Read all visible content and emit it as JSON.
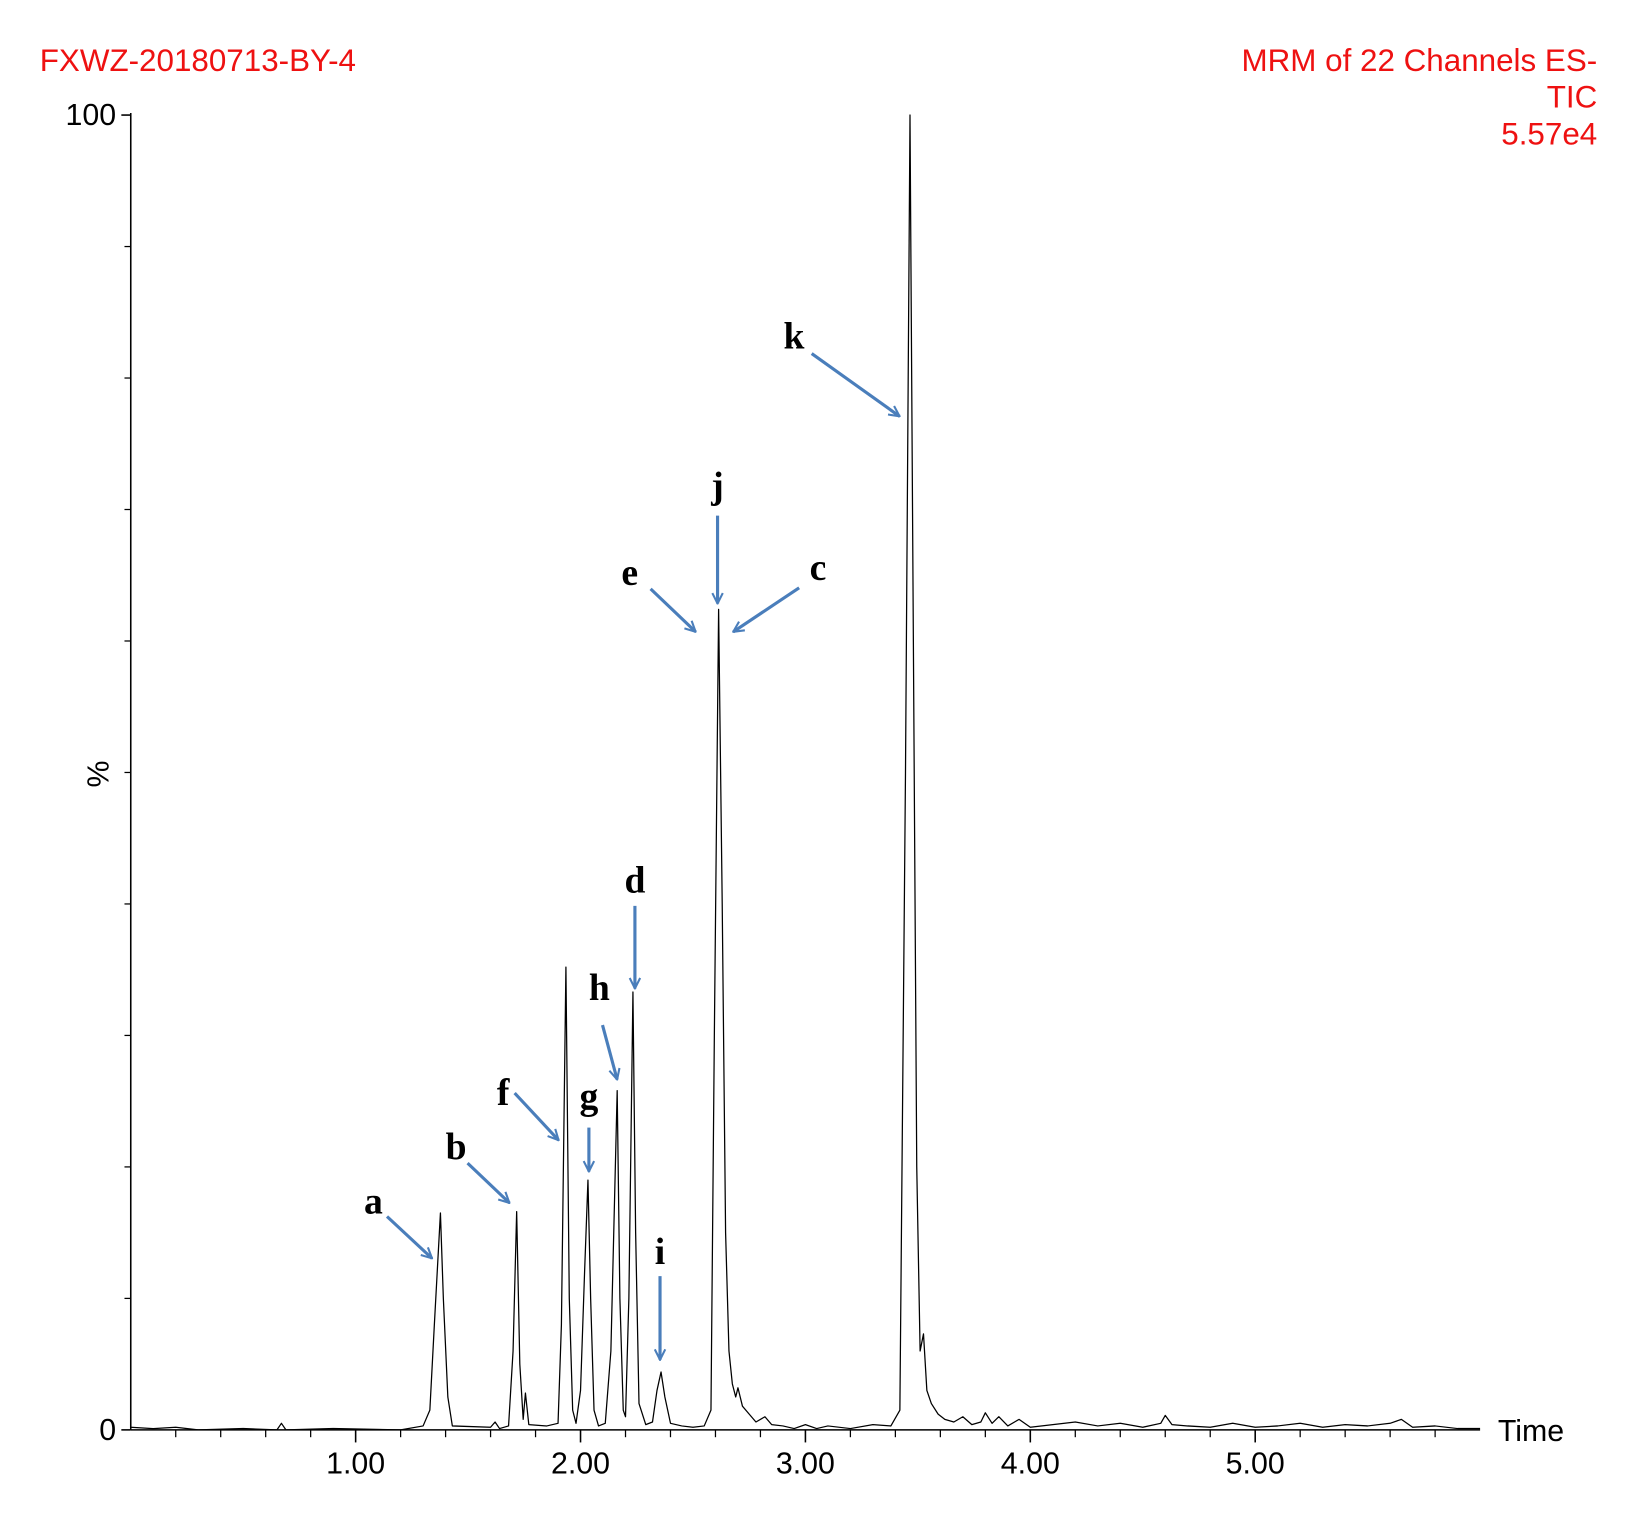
{
  "chart_data": {
    "type": "line",
    "title": "FXWZ-20180713-BY-4",
    "subtitle": [
      "MRM of 22 Channels ES-",
      "TIC",
      "5.57e4"
    ],
    "x_label": "Time",
    "y_label": "%",
    "color": "#000000",
    "xlim": [
      0,
      6.0
    ],
    "ylim": [
      0,
      100
    ],
    "xticks": [
      {
        "value": 1,
        "label": "1.00"
      },
      {
        "value": 2,
        "label": "2.00"
      },
      {
        "value": 3,
        "label": "3.00"
      },
      {
        "value": 4,
        "label": "4.00"
      },
      {
        "value": 5,
        "label": "5.00"
      }
    ],
    "xminorticks": [
      0.2,
      0.4,
      0.6,
      0.8,
      1.2,
      1.4,
      1.6,
      1.8,
      2.2,
      2.4,
      2.6,
      2.8,
      3.2,
      3.4,
      3.6,
      3.8,
      4.2,
      4.4,
      4.6,
      4.8,
      5.2,
      5.4,
      5.6,
      5.8
    ],
    "yticks": [
      0,
      100
    ],
    "yminorticks": [
      10,
      20,
      30,
      40,
      50,
      60,
      70,
      80,
      90
    ],
    "annotations": [
      "a",
      "b",
      "f",
      "g",
      "h",
      "d",
      "i",
      "j",
      "e",
      "c",
      "k"
    ],
    "x": [
      0,
      0.1,
      0.2,
      0.3,
      0.5,
      0.65,
      0.67,
      0.69,
      0.9,
      1.2,
      1.3,
      1.33,
      1.35,
      1.377,
      1.39,
      1.41,
      1.43,
      1.6,
      1.62,
      1.64,
      1.68,
      1.7,
      1.716,
      1.73,
      1.745,
      1.755,
      1.77,
      1.85,
      1.9,
      1.915,
      1.935,
      1.95,
      1.965,
      1.98,
      2.0,
      2.018,
      2.033,
      2.045,
      2.06,
      2.08,
      2.11,
      2.135,
      2.163,
      2.175,
      2.19,
      2.2,
      2.215,
      2.233,
      2.245,
      2.26,
      2.29,
      2.32,
      2.34,
      2.358,
      2.375,
      2.4,
      2.45,
      2.5,
      2.55,
      2.58,
      2.595,
      2.614,
      2.63,
      2.645,
      2.66,
      2.675,
      2.69,
      2.7,
      2.72,
      2.75,
      2.78,
      2.82,
      2.85,
      2.9,
      2.95,
      3.0,
      3.05,
      3.1,
      3.2,
      3.3,
      3.38,
      3.42,
      3.445,
      3.465,
      3.48,
      3.495,
      3.51,
      3.525,
      3.54,
      3.56,
      3.59,
      3.62,
      3.66,
      3.7,
      3.74,
      3.78,
      3.8,
      3.83,
      3.86,
      3.9,
      3.95,
      4.0,
      4.1,
      4.2,
      4.3,
      4.4,
      4.5,
      4.58,
      4.6,
      4.63,
      4.7,
      4.8,
      4.9,
      5.0,
      5.1,
      5.2,
      5.3,
      5.4,
      5.5,
      5.6,
      5.65,
      5.7,
      5.8,
      5.9,
      6.0
    ],
    "values": [
      0.2,
      0.1,
      0.2,
      0.0,
      0.1,
      0.0,
      0.5,
      0.0,
      0.1,
      0.0,
      0.3,
      1.5,
      8.0,
      16.5,
      10.0,
      2.5,
      0.3,
      0.2,
      0.6,
      0.1,
      0.3,
      6.0,
      16.6,
      5.0,
      0.8,
      2.8,
      0.4,
      0.3,
      0.5,
      8.0,
      35.2,
      10.0,
      1.5,
      0.5,
      3.0,
      12.0,
      19.0,
      10.0,
      1.5,
      0.3,
      0.5,
      6.0,
      25.8,
      10.0,
      1.5,
      1.0,
      10.0,
      33.3,
      15.0,
      2.0,
      0.4,
      0.6,
      3.0,
      4.4,
      2.5,
      0.5,
      0.3,
      0.2,
      0.3,
      1.5,
      30.0,
      62.4,
      40.0,
      15.0,
      6.0,
      3.5,
      2.5,
      3.2,
      1.8,
      1.2,
      0.6,
      1.0,
      0.4,
      0.3,
      0.1,
      0.4,
      0.1,
      0.3,
      0.1,
      0.4,
      0.3,
      1.5,
      50.0,
      100,
      60.0,
      20.0,
      6.0,
      7.3,
      3.0,
      2.0,
      1.2,
      0.8,
      0.6,
      1.0,
      0.4,
      0.6,
      1.3,
      0.5,
      1.0,
      0.3,
      0.8,
      0.2,
      0.4,
      0.6,
      0.3,
      0.5,
      0.2,
      0.5,
      1.1,
      0.4,
      0.3,
      0.2,
      0.5,
      0.2,
      0.3,
      0.5,
      0.2,
      0.4,
      0.3,
      0.5,
      0.8,
      0.2,
      0.3,
      0.1,
      0.1
    ]
  }
}
